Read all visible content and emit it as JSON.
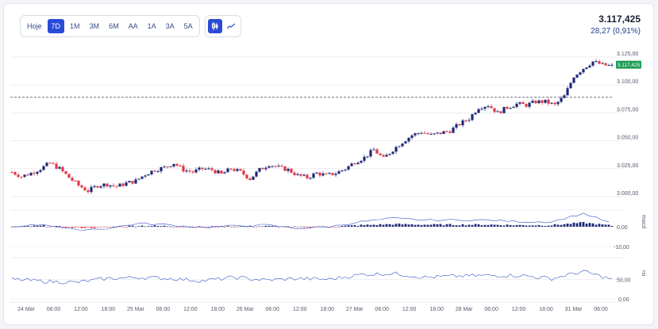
{
  "toolbar": {
    "ranges": [
      "Hoje",
      "7D",
      "1M",
      "3M",
      "6M",
      "AA",
      "1A",
      "3A",
      "5A"
    ],
    "active_range": "7D",
    "chart_types": [
      "candlestick-icon",
      "line-chart-icon"
    ],
    "active_chart_type": "candlestick-icon"
  },
  "quote": {
    "price": "3.117,425",
    "change": "28,27 (0,91%)"
  },
  "colors": {
    "up": "#1e2a78",
    "down": "#e23744",
    "last_price_tag": "#1f9d55",
    "indicator_line": "#3a55c7"
  },
  "main_chart": {
    "y_ticks": [
      "3.125,00",
      "3.100,00",
      "3.075,00",
      "3.050,00",
      "3.025,00",
      "3.000,00"
    ],
    "last_price_tag": "3.117,425",
    "reference_line": 3089
  },
  "macd": {
    "label": "macd",
    "y_ticks": [
      "0,00",
      "-10,00"
    ]
  },
  "rsi": {
    "label": "rsi",
    "y_ticks": [
      "50,00",
      "0,00"
    ]
  },
  "x_ticks": [
    "24 Mar",
    "06:00",
    "12:00",
    "18:00",
    "25 Mar",
    "06:00",
    "12:00",
    "18:00",
    "26 Mar",
    "06:00",
    "12:00",
    "18:00",
    "27 Mar",
    "06:00",
    "12:00",
    "18:00",
    "28 Mar",
    "06:00",
    "12:00",
    "18:00",
    "31 Mar",
    "06:00"
  ],
  "chart_data": {
    "type": "candlestick",
    "y_range": [
      2995,
      3130
    ],
    "close_path": [
      [
        0,
        3022
      ],
      [
        3,
        3018
      ],
      [
        6,
        3021
      ],
      [
        9,
        3025
      ],
      [
        12,
        3030
      ],
      [
        15,
        3025
      ],
      [
        18,
        3017
      ],
      [
        21,
        3010
      ],
      [
        24,
        3005
      ],
      [
        27,
        3010
      ],
      [
        30,
        3011
      ],
      [
        33,
        3009
      ],
      [
        36,
        3012
      ],
      [
        39,
        3014
      ],
      [
        42,
        3020
      ],
      [
        45,
        3024
      ],
      [
        48,
        3026
      ],
      [
        51,
        3030
      ],
      [
        54,
        3024
      ],
      [
        57,
        3022
      ],
      [
        60,
        3025
      ],
      [
        63,
        3024
      ],
      [
        66,
        3020
      ],
      [
        69,
        3025
      ],
      [
        72,
        3022
      ],
      [
        75,
        3016
      ],
      [
        78,
        3024
      ],
      [
        81,
        3029
      ],
      [
        84,
        3026
      ],
      [
        87,
        3024
      ],
      [
        90,
        3019
      ],
      [
        93,
        3017
      ],
      [
        96,
        3021
      ],
      [
        99,
        3019
      ],
      [
        102,
        3021
      ],
      [
        105,
        3025
      ],
      [
        108,
        3031
      ],
      [
        111,
        3035
      ],
      [
        114,
        3042
      ],
      [
        117,
        3034
      ],
      [
        120,
        3042
      ],
      [
        123,
        3049
      ],
      [
        126,
        3055
      ],
      [
        129,
        3058
      ],
      [
        132,
        3055
      ],
      [
        135,
        3057
      ],
      [
        138,
        3059
      ],
      [
        141,
        3065
      ],
      [
        144,
        3070
      ],
      [
        147,
        3080
      ],
      [
        150,
        3082
      ],
      [
        153,
        3075
      ],
      [
        156,
        3080
      ],
      [
        159,
        3083
      ],
      [
        162,
        3082
      ],
      [
        165,
        3085
      ],
      [
        168,
        3085
      ],
      [
        171,
        3082
      ],
      [
        174,
        3090
      ],
      [
        177,
        3108
      ],
      [
        180,
        3115
      ],
      [
        183,
        3121
      ],
      [
        186,
        3118
      ],
      [
        189,
        3117
      ]
    ],
    "macd_path": [
      [
        0,
        0
      ],
      [
        10,
        1.5
      ],
      [
        20,
        -2
      ],
      [
        30,
        -1
      ],
      [
        40,
        2
      ],
      [
        50,
        1
      ],
      [
        60,
        -0.5
      ],
      [
        70,
        0.5
      ],
      [
        80,
        1
      ],
      [
        90,
        -1
      ],
      [
        100,
        0
      ],
      [
        110,
        3
      ],
      [
        120,
        5
      ],
      [
        130,
        4
      ],
      [
        140,
        4
      ],
      [
        150,
        4
      ],
      [
        160,
        3
      ],
      [
        170,
        3
      ],
      [
        180,
        8
      ],
      [
        189,
        2
      ]
    ],
    "rsi_path": [
      [
        0,
        50
      ],
      [
        10,
        45
      ],
      [
        20,
        42
      ],
      [
        30,
        52
      ],
      [
        40,
        55
      ],
      [
        50,
        52
      ],
      [
        60,
        46
      ],
      [
        70,
        55
      ],
      [
        80,
        48
      ],
      [
        90,
        52
      ],
      [
        100,
        50
      ],
      [
        110,
        62
      ],
      [
        120,
        65
      ],
      [
        130,
        55
      ],
      [
        140,
        58
      ],
      [
        150,
        60
      ],
      [
        160,
        60
      ],
      [
        170,
        52
      ],
      [
        180,
        70
      ],
      [
        189,
        50
      ]
    ]
  }
}
